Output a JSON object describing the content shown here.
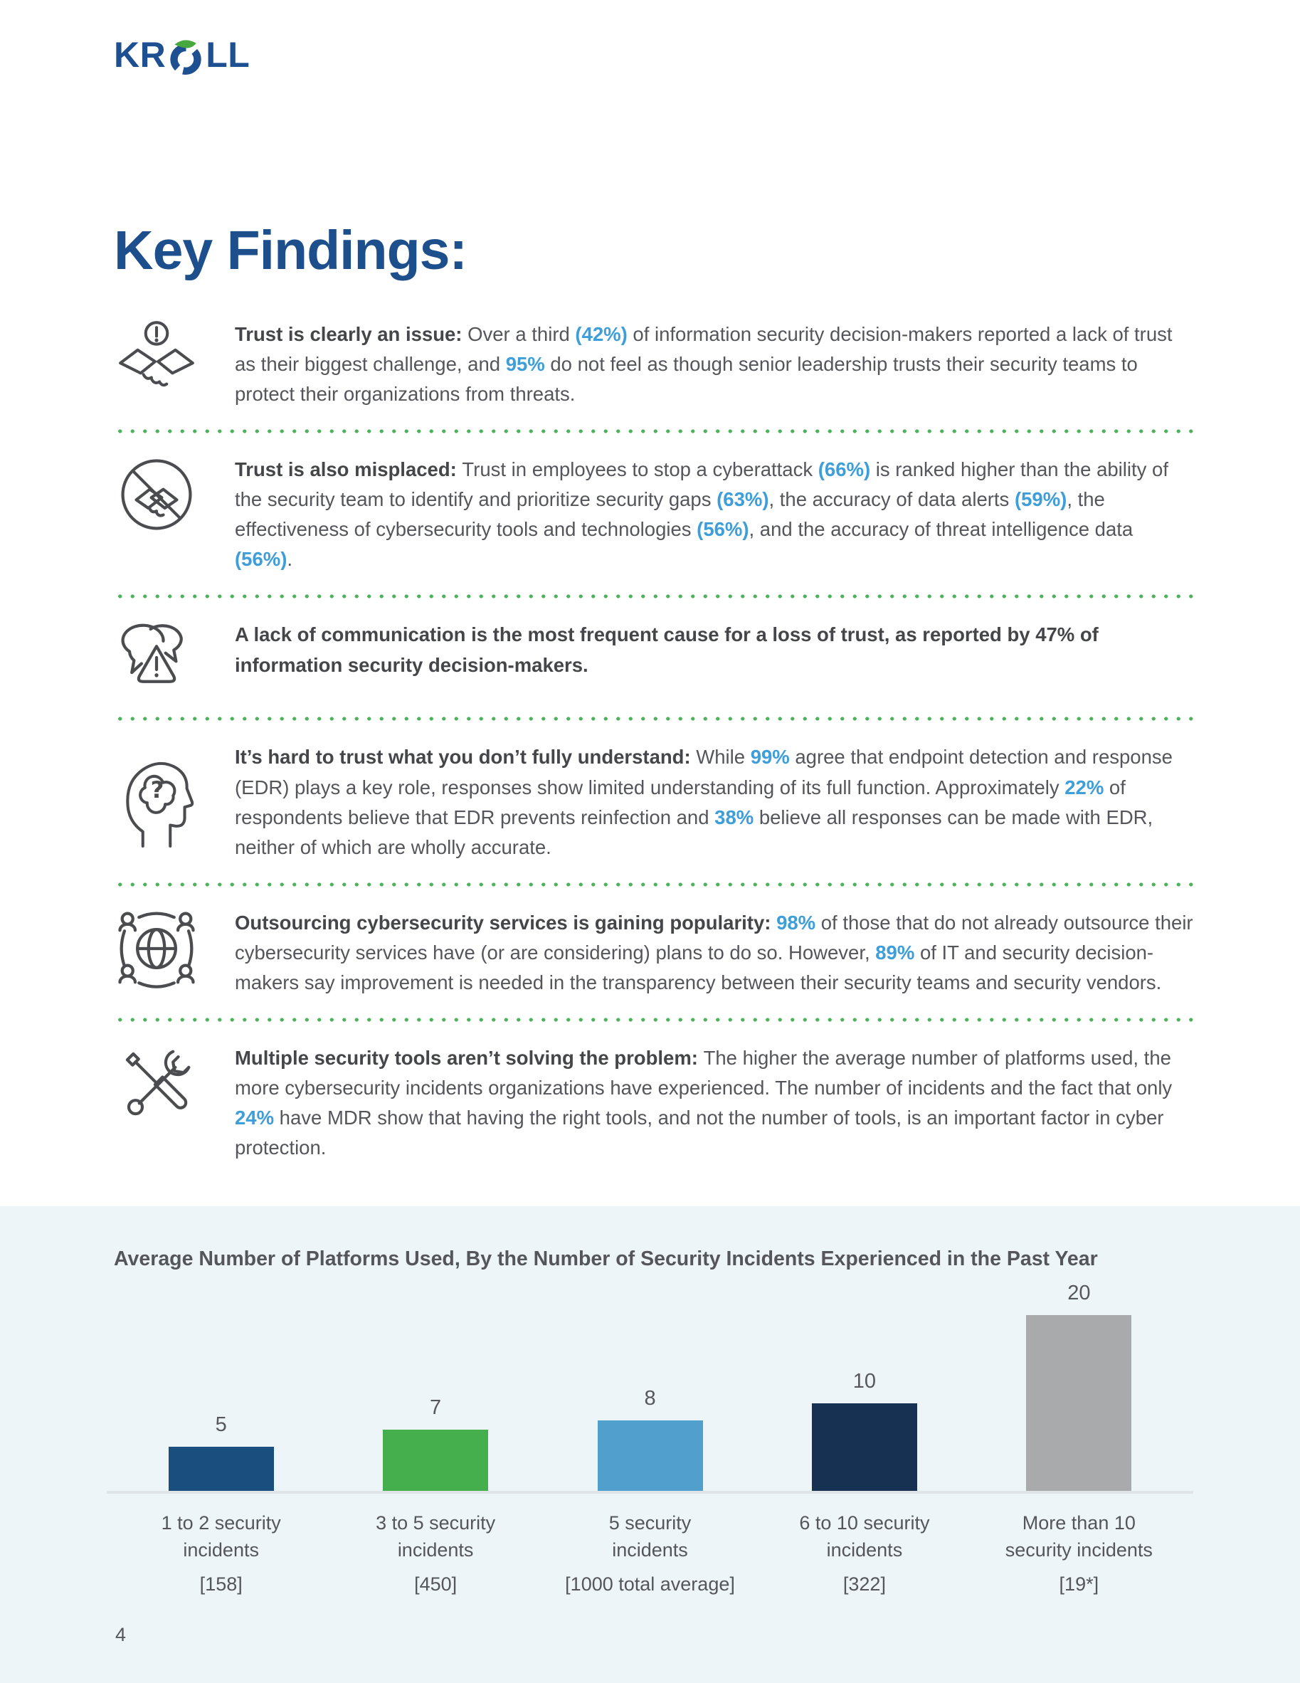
{
  "brand": {
    "name": "Kroll",
    "prefix": "KR",
    "suffix": "LL",
    "blue": "#1d4f91",
    "green": "#47a83e"
  },
  "title": {
    "text": "Key Findings:"
  },
  "accent_color": "#3d9ed9",
  "separator_color": "#4db35a",
  "findings": [
    {
      "icon": "handshake-alert-icon",
      "segments": [
        {
          "t": "Trust is clearly an issue: ",
          "s": "bold"
        },
        {
          "t": "Over a third ",
          "s": ""
        },
        {
          "t": "(42%)",
          "s": "accent"
        },
        {
          "t": " of information security decision-makers reported a lack of trust as their biggest challenge, and ",
          "s": ""
        },
        {
          "t": "95%",
          "s": "accent"
        },
        {
          "t": " do not feel as though senior leadership trusts their security teams to protect their organizations from threats.",
          "s": ""
        }
      ]
    },
    {
      "icon": "no-handshake-icon",
      "segments": [
        {
          "t": "Trust is also misplaced: ",
          "s": "bold"
        },
        {
          "t": "Trust in employees to stop a cyberattack ",
          "s": ""
        },
        {
          "t": "(66%)",
          "s": "accent"
        },
        {
          "t": " is ranked higher than the ability of the security team to identify and prioritize security gaps ",
          "s": ""
        },
        {
          "t": "(63%)",
          "s": "accent"
        },
        {
          "t": ", the accuracy of data alerts ",
          "s": ""
        },
        {
          "t": "(59%)",
          "s": "accent"
        },
        {
          "t": ", the effectiveness of cybersecurity tools and technologies ",
          "s": ""
        },
        {
          "t": "(56%)",
          "s": "accent"
        },
        {
          "t": ", and the accuracy of threat intelligence data ",
          "s": ""
        },
        {
          "t": "(56%)",
          "s": "accent"
        },
        {
          "t": ".",
          "s": ""
        }
      ]
    },
    {
      "icon": "chat-warning-icon",
      "segments": [
        {
          "t": "A lack of communication is the most frequent cause for a loss of trust, as reported by 47% of information security decision-makers.",
          "s": "bold"
        }
      ]
    },
    {
      "icon": "head-question-icon",
      "segments": [
        {
          "t": "It’s hard to trust what you don’t fully understand: ",
          "s": "bold"
        },
        {
          "t": "While ",
          "s": ""
        },
        {
          "t": "99%",
          "s": "accent"
        },
        {
          "t": " agree that endpoint detection and response (EDR) plays a key role, responses show limited understanding of its full function. Approximately ",
          "s": ""
        },
        {
          "t": "22%",
          "s": "accent"
        },
        {
          "t": " of respondents believe that EDR prevents reinfection and ",
          "s": ""
        },
        {
          "t": "38%",
          "s": "accent"
        },
        {
          "t": " believe all responses can be made with EDR, neither of which are wholly accurate.",
          "s": ""
        }
      ]
    },
    {
      "icon": "global-network-icon",
      "segments": [
        {
          "t": "Outsourcing cybersecurity services is gaining popularity: ",
          "s": "bold"
        },
        {
          "t": "98%",
          "s": "accent"
        },
        {
          "t": " of those that do not already outsource their cybersecurity services have (or are considering) plans to do so. However, ",
          "s": ""
        },
        {
          "t": "89%",
          "s": "accent"
        },
        {
          "t": " of IT and security decision-makers say improvement is needed in the transparency between their security teams and security vendors.",
          "s": ""
        }
      ]
    },
    {
      "icon": "tools-icon",
      "segments": [
        {
          "t": "Multiple security tools aren’t solving the problem: ",
          "s": "bold"
        },
        {
          "t": "The higher the average number of platforms used, the more cybersecurity incidents organizations have experienced. The number of incidents and the fact that only ",
          "s": ""
        },
        {
          "t": "24%",
          "s": "accent"
        },
        {
          "t": " have MDR show that having the right tools, and not the number of tools, is an important factor in cyber protection.",
          "s": ""
        }
      ]
    }
  ],
  "chart_data": {
    "type": "bar",
    "title": "Average Number of Platforms Used, By the Number of Security Incidents Experienced in the Past Year",
    "values": [
      5,
      7,
      8,
      10,
      20
    ],
    "categories": [
      [
        "1 to 2 security",
        "incidents",
        "[158]"
      ],
      [
        "3 to 5 security",
        "incidents",
        "[450]"
      ],
      [
        "5 security",
        "incidents",
        "[1000 total average]"
      ],
      [
        "6 to 10 security",
        "incidents",
        "[322]"
      ],
      [
        "More than 10",
        "security incidents",
        "[19*]"
      ]
    ],
    "colors": [
      "#1A4E7E",
      "#45AE4D",
      "#519FCC",
      "#163152",
      "#A9AAAC"
    ],
    "ylim": [
      0,
      20
    ],
    "grid": false,
    "value_labels": true,
    "panel_background": "#edf5f8"
  },
  "page": {
    "number": "4"
  }
}
